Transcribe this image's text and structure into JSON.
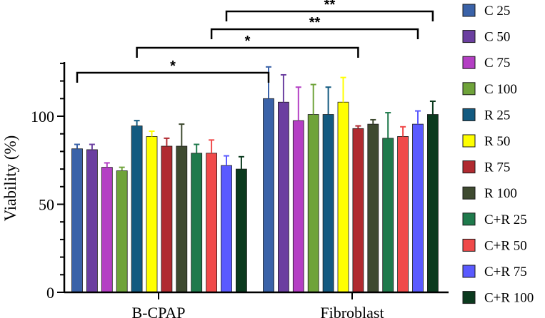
{
  "chart_data": {
    "type": "bar",
    "title": "",
    "xlabel": "",
    "ylabel": "Viability (%)",
    "ylim": [
      0,
      130
    ],
    "yticks": [
      "0",
      "50",
      "100"
    ],
    "categories": [
      "B-CPAP",
      "Fibroblast"
    ],
    "series": [
      {
        "name": "C 25",
        "color": "#3a62a8",
        "values": [
          81.5,
          110.0
        ],
        "errors": [
          2.5,
          18.0
        ]
      },
      {
        "name": "C 50",
        "color": "#6b3fa0",
        "values": [
          81.0,
          108.0
        ],
        "errors": [
          3.0,
          15.5
        ]
      },
      {
        "name": "C 75",
        "color": "#b43fc4",
        "values": [
          71.0,
          97.5
        ],
        "errors": [
          2.5,
          19.0
        ]
      },
      {
        "name": "C 100",
        "color": "#6fa33a",
        "values": [
          69.0,
          101.0
        ],
        "errors": [
          2.0,
          17.0
        ]
      },
      {
        "name": "R 25",
        "color": "#135a80",
        "values": [
          94.5,
          101.0
        ],
        "errors": [
          3.0,
          15.5
        ]
      },
      {
        "name": "R 50",
        "color": "#ffff00",
        "values": [
          88.5,
          108.0
        ],
        "errors": [
          3.0,
          14.0
        ]
      },
      {
        "name": "R 75",
        "color": "#b02a30",
        "values": [
          83.0,
          93.0
        ],
        "errors": [
          4.5,
          1.5
        ]
      },
      {
        "name": "R 100",
        "color": "#3e4a30",
        "values": [
          83.0,
          95.5
        ],
        "errors": [
          12.5,
          2.5
        ]
      },
      {
        "name": "C+R 25",
        "color": "#1f7a4c",
        "values": [
          79.0,
          87.5
        ],
        "errors": [
          5.0,
          14.5
        ]
      },
      {
        "name": "C+R 50",
        "color": "#f04a4a",
        "values": [
          79.0,
          88.5
        ],
        "errors": [
          7.5,
          5.5
        ]
      },
      {
        "name": "C+R 75",
        "color": "#5a5aff",
        "values": [
          72.0,
          95.5
        ],
        "errors": [
          5.5,
          7.5
        ]
      },
      {
        "name": "C+R 100",
        "color": "#0b3a1e",
        "values": [
          70.0,
          101.0
        ],
        "errors": [
          7.0,
          7.5
        ]
      }
    ],
    "significance": [
      {
        "label": "*",
        "from": "B-CPAP C 25",
        "to": "Fibroblast C 25"
      },
      {
        "label": "*",
        "from": "B-CPAP R 25",
        "to": "Fibroblast R 75"
      },
      {
        "label": "**",
        "from": "B-CPAP C+R 50",
        "to": "Fibroblast C+R 75"
      },
      {
        "label": "**",
        "from": "B-CPAP C+R 75",
        "to": "Fibroblast C+R 100"
      }
    ],
    "legend_position": "right"
  }
}
